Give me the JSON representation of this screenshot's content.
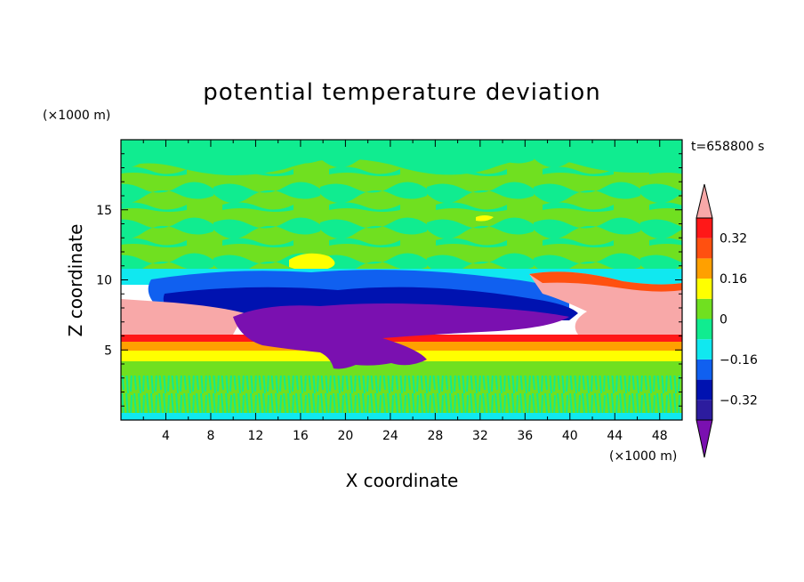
{
  "chart_data": {
    "type": "heatmap",
    "title": "potential temperature deviation",
    "xlabel": "X coordinate",
    "ylabel": "Z coordinate",
    "x_unit": "(×1000 m)",
    "y_unit": "(×1000 m)",
    "time_label": "t=658800 s",
    "xlim": [
      0,
      50
    ],
    "ylim": [
      0,
      20
    ],
    "x_ticks": [
      "4",
      "8",
      "12",
      "16",
      "20",
      "24",
      "28",
      "32",
      "36",
      "40",
      "44",
      "48"
    ],
    "y_ticks": [
      "5",
      "10",
      "15"
    ],
    "colorbar": {
      "levels": [
        -0.4,
        -0.32,
        -0.24,
        -0.16,
        -0.08,
        0,
        0.08,
        0.16,
        0.24,
        0.32,
        0.4
      ],
      "tick_labels": [
        "0.32",
        "0.16",
        "0",
        "−0.16",
        "−0.32"
      ],
      "extend": "both",
      "colors_bottom_to_top": [
        "#7a10b0",
        "#2c1c9e",
        "#0012b0",
        "#1060f0",
        "#10e8f0",
        "#10ec90",
        "#70e020",
        "#ffff00",
        "#ffa000",
        "#ff5010",
        "#ff1818",
        "#f8a8a8"
      ]
    },
    "layers": [
      {
        "z_range": [
          0,
          0.5
        ],
        "value": "-0.1 to 0.1 (mixed)"
      },
      {
        "z_range": [
          0.5,
          3.5
        ],
        "value": "0 to 0.08 with streaks of -0.08"
      },
      {
        "z_range": [
          3.5,
          4.5
        ],
        "value": "0.08 to 0.16"
      },
      {
        "z_range": [
          4.5,
          5.5
        ],
        "value": "0.16 to 0.24"
      },
      {
        "z_range": [
          5.5,
          6.0
        ],
        "value": "0.24 to 0.4"
      },
      {
        "z_range": [
          6.0,
          8.8
        ],
        "value": "> 0.4"
      },
      {
        "z_range": [
          8.8,
          10.5
        ],
        "value": "-0.32 to -0.08"
      },
      {
        "z_range": [
          10.5,
          20
        ],
        "value": "-0.08 to 0.16"
      }
    ],
    "anomaly": {
      "description": "cold pool, values < -0.4",
      "x_range": [
        10,
        36
      ],
      "z_range": [
        3.5,
        9.5
      ]
    }
  }
}
